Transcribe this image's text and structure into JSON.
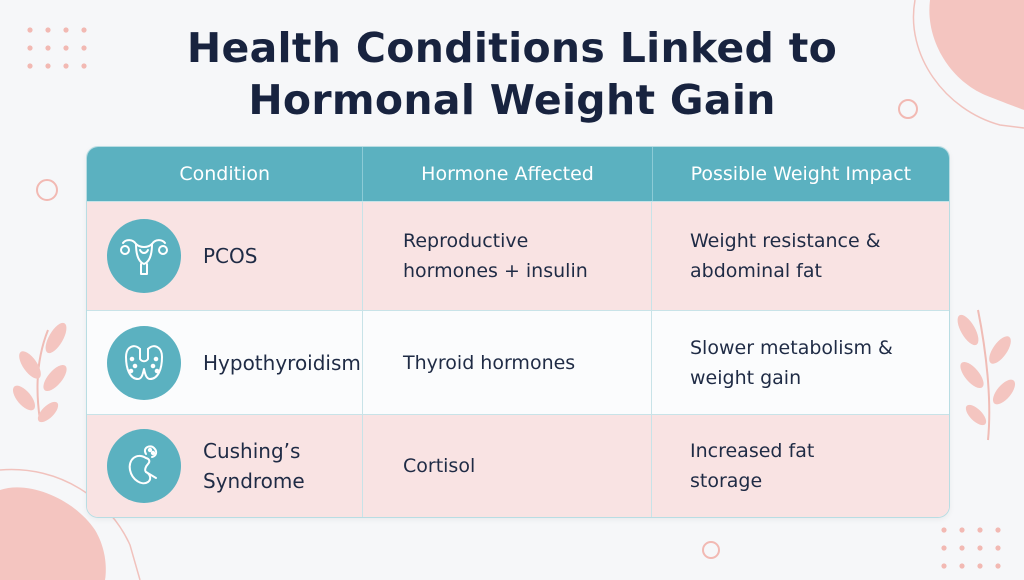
{
  "title": {
    "line1": "Health Conditions Linked to",
    "line2": "Hormonal Weight Gain"
  },
  "table": {
    "headers": [
      "Condition",
      "Hormone Affected",
      "Possible Weight Impact"
    ],
    "rows": [
      {
        "condition": "PCOS",
        "icon": "uterus-icon",
        "hormone": "Reproductive\nhormones + insulin",
        "impact": "Weight resistance &\nabdominal fat"
      },
      {
        "condition": "Hypothyroidism",
        "icon": "thyroid-icon",
        "hormone": "Thyroid hormones",
        "impact": "Slower metabolism &\nweight gain"
      },
      {
        "condition": "Cushing’s\nSyndrome",
        "icon": "adrenal-kidney-icon",
        "hormone": "Cortisol",
        "impact": "Increased fat\nstorage"
      }
    ]
  },
  "colors": {
    "accent": "#5bb1c0",
    "row_pink": "#f9e3e3",
    "title": "#18233f",
    "decor_pink": "#f4c5c0"
  }
}
